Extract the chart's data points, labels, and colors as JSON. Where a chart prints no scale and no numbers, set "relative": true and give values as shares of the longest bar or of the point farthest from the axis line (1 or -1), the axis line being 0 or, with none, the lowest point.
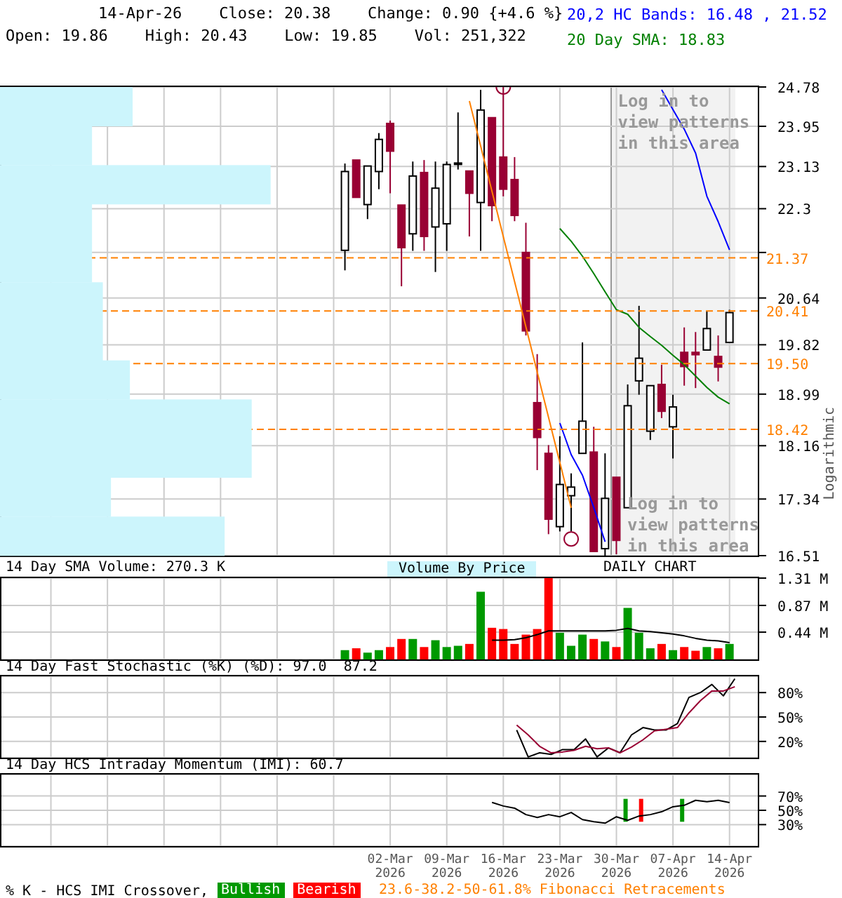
{
  "chart_data": [
    {
      "type": "candlestick",
      "title": "14-Apr-26    Close: 20.38    Change: 0.90 {+4.6 %}",
      "subtitle": "Open: 19.86    High: 20.43    Low: 19.85    Vol: 251,322",
      "ylabel": "Logarithmic",
      "log": true,
      "grid": true,
      "legend": "top right",
      "tick_labels": "y",
      "categories": [
        null,
        null,
        null,
        null,
        null,
        null,
        null,
        null,
        null,
        null,
        null,
        null,
        null,
        null,
        null,
        null,
        null,
        null,
        null,
        null,
        null,
        null,
        null,
        null,
        null,
        null,
        null,
        null,
        null,
        null,
        null,
        null,
        null,
        null,
        "02-Mar 2026",
        null,
        null,
        null,
        null,
        "09-Mar 2026",
        null,
        null,
        null,
        null,
        "16-Mar 2026",
        null,
        null,
        null,
        null,
        "23-Mar 2026",
        null,
        null,
        null,
        null,
        "30-Mar 2026",
        null,
        null,
        null,
        null,
        "07-Apr 2026",
        null,
        null,
        null,
        null,
        "14-Apr 2026",
        null,
        null
      ],
      "ohlc": [
        null,
        null,
        null,
        null,
        null,
        null,
        null,
        null,
        null,
        null,
        null,
        null,
        null,
        null,
        null,
        null,
        null,
        null,
        null,
        null,
        null,
        null,
        null,
        null,
        null,
        null,
        null,
        null,
        null,
        null,
        [
          21.51,
          23.19,
          21.14,
          23.03
        ],
        [
          23.26,
          23.26,
          22.52,
          22.52
        ],
        [
          22.38,
          23.14,
          22.1,
          23.14
        ],
        [
          23.03,
          23.81,
          22.68,
          23.68
        ],
        [
          24.01,
          24.07,
          22.6,
          23.44
        ],
        [
          22.37,
          22.37,
          20.85,
          21.56
        ],
        [
          21.82,
          23.23,
          21.5,
          22.94
        ],
        [
          23.01,
          23.26,
          21.5,
          21.77
        ],
        [
          21.95,
          23.23,
          21.11,
          22.7
        ],
        [
          22.01,
          23.23,
          21.5,
          23.17
        ],
        [
          23.19,
          24.24,
          23.07,
          23.2
        ],
        [
          23.04,
          23.04,
          21.77,
          22.6
        ],
        [
          22.42,
          24.72,
          21.5,
          24.29
        ],
        [
          24.13,
          24.13,
          22.06,
          22.36
        ],
        [
          23.32,
          24.78,
          22.54,
          22.68
        ],
        [
          22.87,
          23.32,
          22.06,
          22.17
        ],
        [
          21.47,
          22.03,
          19.98,
          20.06
        ],
        [
          18.85,
          19.66,
          17.78,
          18.29
        ],
        [
          18.04,
          18.17,
          16.82,
          17.04
        ],
        [
          16.93,
          18.31,
          16.86,
          17.56
        ],
        [
          17.39,
          17.73,
          16.86,
          17.52
        ],
        [
          18.04,
          19.86,
          18.04,
          18.55
        ],
        [
          18.06,
          18.46,
          16.57,
          16.57
        ],
        [
          16.61,
          18.04,
          16.51,
          17.35
        ],
        [
          17.67,
          17.67,
          16.53,
          16.73
        ],
        [
          17.21,
          19.15,
          17.21,
          18.8
        ],
        [
          19.21,
          20.5,
          18.98,
          19.59
        ],
        [
          18.39,
          19.13,
          18.25,
          19.13
        ],
        [
          19.15,
          19.48,
          18.6,
          18.71
        ],
        [
          18.46,
          18.98,
          17.96,
          18.78
        ],
        [
          19.69,
          20.12,
          19.13,
          19.45
        ],
        [
          19.69,
          20.04,
          19.09,
          19.65
        ],
        [
          19.73,
          20.4,
          19.73,
          20.1
        ],
        [
          19.62,
          19.98,
          19.2,
          19.44
        ],
        [
          19.86,
          20.43,
          19.85,
          20.38
        ],
        null,
        null
      ],
      "colors": [
        null,
        null,
        null,
        null,
        null,
        null,
        null,
        null,
        null,
        null,
        null,
        null,
        null,
        null,
        null,
        null,
        null,
        null,
        null,
        null,
        null,
        null,
        null,
        null,
        null,
        null,
        null,
        null,
        null,
        null,
        "#ffffff",
        "#990033",
        "#ffffff",
        "#ffffff",
        "#990033",
        "#990033",
        "#ffffff",
        "#990033",
        "#ffffff",
        "#ffffff",
        "#ffffff",
        "#990033",
        "#ffffff",
        "#990033",
        "#990033",
        "#990033",
        "#990033",
        "#990033",
        "#990033",
        "#ffffff",
        "#ffffff",
        "#ffffff",
        "#990033",
        "#ffffff",
        "#990033",
        "#ffffff",
        "#ffffff",
        "#ffffff",
        "#990033",
        "#ffffff",
        "#990033",
        "#990033",
        "#ffffff",
        "#990033",
        "#ffffff",
        null,
        null
      ],
      "series": [
        {
          "type": "line",
          "name": "20,2 HC Bands: 16.48 , 21.52",
          "color": "#0000ff",
          "values": [
            null,
            null,
            null,
            null,
            null,
            null,
            null,
            null,
            null,
            null,
            null,
            null,
            null,
            null,
            null,
            null,
            null,
            null,
            null,
            null,
            null,
            null,
            null,
            null,
            null,
            null,
            null,
            null,
            null,
            null,
            null,
            null,
            null,
            null,
            null,
            null,
            null,
            null,
            null,
            null,
            null,
            null,
            null,
            null,
            null,
            null,
            null,
            null,
            null,
            null,
            null,
            null,
            null,
            null,
            null,
            null,
            null,
            null,
            24.72,
            24.3,
            23.89,
            23.4,
            22.54,
            22.05,
            21.52,
            null,
            null
          ]
        },
        {
          "type": "line",
          "color": "#0000ff",
          "values": [
            null,
            null,
            null,
            null,
            null,
            null,
            null,
            null,
            null,
            null,
            null,
            null,
            null,
            null,
            null,
            null,
            null,
            null,
            null,
            null,
            null,
            null,
            null,
            null,
            null,
            null,
            null,
            null,
            null,
            null,
            null,
            null,
            null,
            null,
            null,
            null,
            null,
            null,
            null,
            null,
            null,
            null,
            null,
            null,
            null,
            null,
            null,
            null,
            null,
            18.52,
            18.02,
            17.7,
            17.21,
            16.71,
            null,
            null,
            null,
            null,
            null,
            null,
            null,
            null,
            null,
            null,
            null,
            null,
            null
          ]
        },
        {
          "type": "line",
          "name": "20 Day SMA: 18.83",
          "color": "#008000",
          "values": [
            null,
            null,
            null,
            null,
            null,
            null,
            null,
            null,
            null,
            null,
            null,
            null,
            null,
            null,
            null,
            null,
            null,
            null,
            null,
            null,
            null,
            null,
            null,
            null,
            null,
            null,
            null,
            null,
            null,
            null,
            null,
            null,
            null,
            null,
            null,
            null,
            null,
            null,
            null,
            null,
            null,
            null,
            null,
            null,
            null,
            null,
            null,
            null,
            null,
            21.92,
            21.68,
            21.4,
            21.08,
            20.75,
            20.43,
            20.35,
            20.12,
            19.96,
            19.81,
            19.64,
            19.48,
            19.29,
            19.1,
            18.94,
            18.83,
            null,
            null
          ]
        },
        {
          "type": "line",
          "color": "#ff8000",
          "values": [
            null,
            null,
            null,
            null,
            null,
            null,
            null,
            null,
            null,
            null,
            null,
            null,
            null,
            null,
            null,
            null,
            null,
            null,
            null,
            null,
            null,
            null,
            null,
            null,
            null,
            null,
            null,
            null,
            null,
            null,
            null,
            null,
            null,
            null,
            null,
            null,
            null,
            null,
            null,
            null,
            null,
            24.48,
            null,
            null,
            null,
            null,
            null,
            null,
            null,
            null,
            17.21,
            null,
            null,
            null,
            null,
            null,
            null,
            null,
            null,
            null,
            null,
            null,
            null,
            null,
            null,
            null,
            null
          ]
        },
        {
          "type": "scatter",
          "color": "#990033",
          "marker": "circle",
          "values": [
            null,
            null,
            null,
            null,
            null,
            null,
            null,
            null,
            null,
            null,
            null,
            null,
            null,
            null,
            null,
            null,
            null,
            null,
            null,
            null,
            null,
            null,
            null,
            null,
            null,
            null,
            null,
            null,
            null,
            null,
            null,
            null,
            null,
            null,
            null,
            null,
            null,
            null,
            null,
            null,
            null,
            null,
            null,
            null,
            24.78,
            null,
            null,
            null,
            null,
            null,
            16.75,
            null,
            null,
            null,
            null,
            null,
            null,
            null,
            null,
            null,
            null,
            null,
            null,
            null,
            null,
            null,
            null
          ]
        }
      ],
      "ylim": [
        16.51,
        24.78
      ],
      "yticks": [
        16.51,
        17.34,
        18.16,
        18.99,
        19.82,
        20.64,
        {
          "value": 21.47,
          "label": null
        },
        22.3,
        23.13,
        23.95,
        24.78
      ],
      "ref_lines": [
        {
          "axis": "y",
          "value": 21.37,
          "label": "21.37",
          "color": "#ff8000",
          "line_style": "dashed"
        },
        {
          "axis": "y",
          "value": 20.41,
          "label": "20.41",
          "color": "#ff8000",
          "line_style": "dashed"
        },
        {
          "axis": "y",
          "value": 19.5,
          "label": "19.50",
          "color": "#ff8000",
          "line_style": "dashed"
        },
        {
          "axis": "y",
          "value": 18.42,
          "label": "18.42",
          "color": "#ff8000",
          "line_style": "dashed"
        }
      ],
      "bands": [
        {
          "axis": "x",
          "from": "30-Mar 2026",
          "to": "14-Apr 2026",
          "label": "Log in to view patterns in this area",
          "color": "#f2f2f2"
        }
      ],
      "annotations": [
        "Log in to view patterns in this area",
        "DAILY CHART",
        "23.6-38.2-50-61.8% Fibonacci Retracements",
        "Volume By Price"
      ]
    },
    {
      "type": "bar",
      "orientation": "horizontal",
      "relative": true,
      "categories": [
        null,
        null,
        null,
        null,
        null,
        null,
        null,
        null,
        null,
        null,
        null,
        null
      ],
      "values": [
        0.49,
        0.34,
        1,
        0.34,
        0.34,
        0.38,
        0.38,
        0.48,
        0.93,
        0.93,
        0.41,
        0.83
      ],
      "color": "#ccf5fc"
    },
    {
      "type": "bar",
      "title": "14 Day SMA Volume: 270.3 K",
      "grid": true,
      "tick_labels": "y",
      "categories": [
        null,
        null,
        null,
        null,
        null,
        null,
        null,
        null,
        null,
        null,
        null,
        null,
        null,
        null,
        null,
        null,
        null,
        null,
        null,
        null,
        null,
        null,
        null,
        null,
        null,
        null,
        null,
        null,
        null,
        null,
        null,
        null,
        null,
        null,
        "02-Mar 2026",
        null,
        null,
        null,
        null,
        "09-Mar 2026",
        null,
        null,
        null,
        null,
        "16-Mar 2026",
        null,
        null,
        null,
        null,
        "23-Mar 2026",
        null,
        null,
        null,
        null,
        "30-Mar 2026",
        null,
        null,
        null,
        null,
        "07-Apr 2026",
        null,
        null,
        null,
        null,
        "14-Apr 2026",
        null,
        null
      ],
      "series": [
        {
          "values": [
            null,
            null,
            null,
            null,
            null,
            null,
            null,
            null,
            null,
            null,
            null,
            null,
            null,
            null,
            null,
            null,
            null,
            null,
            null,
            null,
            null,
            null,
            null,
            null,
            null,
            null,
            null,
            null,
            null,
            null,
            0.15,
            0.18,
            0.11,
            0.15,
            0.2,
            0.33,
            0.33,
            0.2,
            0.31,
            0.2,
            0.22,
            0.25,
            1.09,
            0.51,
            0.49,
            0.25,
            0.4,
            0.49,
            1.31,
            0.43,
            0.22,
            0.4,
            0.33,
            0.29,
            0.2,
            0.83,
            0.43,
            0.18,
            0.25,
            0.15,
            0.2,
            0.14,
            0.2,
            0.18,
            0.25,
            null,
            null
          ],
          "colors": [
            null,
            null,
            null,
            null,
            null,
            null,
            null,
            null,
            null,
            null,
            null,
            null,
            null,
            null,
            null,
            null,
            null,
            null,
            null,
            null,
            null,
            null,
            null,
            null,
            null,
            null,
            null,
            null,
            null,
            null,
            "#009900",
            "#ff0000",
            "#009900",
            "#009900",
            "#ff0000",
            "#ff0000",
            "#009900",
            "#ff0000",
            "#009900",
            "#009900",
            "#009900",
            "#ff0000",
            "#009900",
            "#ff0000",
            "#ff0000",
            "#ff0000",
            "#ff0000",
            "#ff0000",
            "#ff0000",
            "#009900",
            "#009900",
            "#009900",
            "#ff0000",
            "#009900",
            "#ff0000",
            "#009900",
            "#009900",
            "#009900",
            "#ff0000",
            "#009900",
            "#ff0000",
            "#ff0000",
            "#009900",
            "#ff0000",
            "#009900",
            null,
            null
          ]
        },
        {
          "type": "line",
          "color": "#000000",
          "values": [
            null,
            null,
            null,
            null,
            null,
            null,
            null,
            null,
            null,
            null,
            null,
            null,
            null,
            null,
            null,
            null,
            null,
            null,
            null,
            null,
            null,
            null,
            null,
            null,
            null,
            null,
            null,
            null,
            null,
            null,
            null,
            null,
            null,
            null,
            null,
            null,
            null,
            null,
            null,
            null,
            null,
            null,
            null,
            0.31,
            0.31,
            0.32,
            0.35,
            0.4,
            0.46,
            0.46,
            0.46,
            0.46,
            0.46,
            0.46,
            0.47,
            0.5,
            0.46,
            0.45,
            0.43,
            0.41,
            0.38,
            0.34,
            0.31,
            0.3,
            0.27,
            null,
            null
          ]
        }
      ],
      "ylim": [
        0,
        1.31
      ],
      "yticks": [
        {
          "value": 0.44,
          "label": "0.44 M"
        },
        {
          "value": 0.87,
          "label": "0.87 M"
        },
        {
          "value": 1.31,
          "label": "1.31 M"
        }
      ]
    },
    {
      "type": "line",
      "title": "14 Day Fast Stochastic (%K) (%D): 97.0  87.2",
      "grid": true,
      "tick_labels": "y",
      "categories": [
        null,
        null,
        null,
        null,
        null,
        null,
        null,
        null,
        null,
        null,
        null,
        null,
        null,
        null,
        null,
        null,
        null,
        null,
        null,
        null,
        null,
        null,
        null,
        null,
        null,
        null,
        null,
        null,
        null,
        null,
        null,
        null,
        null,
        null,
        "02-Mar 2026",
        null,
        null,
        null,
        null,
        "09-Mar 2026",
        null,
        null,
        null,
        null,
        "16-Mar 2026",
        null,
        null,
        null,
        null,
        "23-Mar 2026",
        null,
        null,
        null,
        null,
        "30-Mar 2026",
        null,
        null,
        null,
        null,
        "07-Apr 2026",
        null,
        null,
        null,
        null,
        "14-Apr 2026",
        null,
        null
      ],
      "series": [
        {
          "color": "#000000",
          "values": [
            null,
            null,
            null,
            null,
            null,
            null,
            null,
            null,
            null,
            null,
            null,
            null,
            null,
            null,
            null,
            null,
            null,
            null,
            null,
            null,
            null,
            null,
            null,
            null,
            null,
            null,
            null,
            null,
            null,
            null,
            null,
            null,
            null,
            null,
            null,
            null,
            null,
            null,
            null,
            null,
            null,
            null,
            null,
            null,
            null,
            34,
            1,
            6,
            4,
            10,
            10,
            23,
            1,
            12,
            6,
            28,
            37,
            34,
            34,
            42,
            74,
            80,
            90,
            76,
            97.0,
            null,
            null
          ]
        },
        {
          "color": "#990033",
          "values": [
            null,
            null,
            null,
            null,
            null,
            null,
            null,
            null,
            null,
            null,
            null,
            null,
            null,
            null,
            null,
            null,
            null,
            null,
            null,
            null,
            null,
            null,
            null,
            null,
            null,
            null,
            null,
            null,
            null,
            null,
            null,
            null,
            null,
            null,
            null,
            null,
            null,
            null,
            null,
            null,
            null,
            null,
            null,
            null,
            null,
            40,
            28,
            14,
            6,
            7,
            9,
            14,
            11,
            12,
            6,
            13,
            22,
            33,
            35,
            37,
            55,
            70,
            82,
            82,
            87.2,
            null,
            null
          ]
        }
      ],
      "ylim": [
        0,
        100
      ],
      "yticks": [
        {
          "value": 20,
          "label": "20%"
        },
        {
          "value": 50,
          "label": "50%"
        },
        {
          "value": 80,
          "label": "80%"
        }
      ]
    },
    {
      "type": "line",
      "title": "14 Day HCS Intraday Momentum (IMI): 60.7",
      "grid": true,
      "legend": "bottom",
      "legend_title": "% K - HCS IMI Crossover,",
      "categories": [
        null,
        null,
        null,
        null,
        null,
        null,
        null,
        null,
        null,
        null,
        null,
        null,
        null,
        null,
        null,
        null,
        null,
        null,
        null,
        null,
        null,
        null,
        null,
        null,
        null,
        null,
        null,
        null,
        null,
        null,
        null,
        null,
        null,
        null,
        "02-Mar 2026",
        null,
        null,
        null,
        null,
        "09-Mar 2026",
        null,
        null,
        null,
        null,
        "16-Mar 2026",
        null,
        null,
        null,
        null,
        "23-Mar 2026",
        null,
        null,
        null,
        null,
        "30-Mar 2026",
        null,
        null,
        null,
        null,
        "07-Apr 2026",
        null,
        null,
        null,
        null,
        "14-Apr 2026",
        null,
        null
      ],
      "series": [
        {
          "type": "bar",
          "name": "Bullish",
          "color": "#009900",
          "values": [
            null,
            null,
            null,
            null,
            null,
            null,
            null,
            null,
            null,
            null,
            null,
            null,
            null,
            null,
            null,
            null,
            null,
            null,
            null,
            null,
            null,
            null,
            null,
            null,
            null,
            null,
            null,
            null,
            null,
            null,
            null,
            null,
            null,
            null,
            null,
            null,
            null,
            null,
            null,
            null,
            null,
            null,
            null,
            null,
            null,
            null,
            null,
            null,
            null,
            null,
            null,
            null,
            null,
            null,
            null,
            32,
            null,
            null,
            null,
            null,
            32,
            null,
            null,
            null,
            null,
            null,
            null
          ],
          "base": [
            null,
            null,
            null,
            null,
            null,
            null,
            null,
            null,
            null,
            null,
            null,
            null,
            null,
            null,
            null,
            null,
            null,
            null,
            null,
            null,
            null,
            null,
            null,
            null,
            null,
            null,
            null,
            null,
            null,
            null,
            null,
            null,
            null,
            null,
            null,
            null,
            null,
            null,
            null,
            null,
            null,
            null,
            null,
            null,
            null,
            null,
            null,
            null,
            null,
            null,
            null,
            null,
            null,
            null,
            null,
            34,
            null,
            null,
            null,
            null,
            34,
            null,
            null,
            null,
            null,
            null,
            null
          ]
        },
        {
          "type": "bar",
          "name": "Bearish",
          "color": "#ff0000",
          "values": [
            null,
            null,
            null,
            null,
            null,
            null,
            null,
            null,
            null,
            null,
            null,
            null,
            null,
            null,
            null,
            null,
            null,
            null,
            null,
            null,
            null,
            null,
            null,
            null,
            null,
            null,
            null,
            null,
            null,
            null,
            null,
            null,
            null,
            null,
            null,
            null,
            null,
            null,
            null,
            null,
            null,
            null,
            null,
            null,
            null,
            null,
            null,
            null,
            null,
            null,
            null,
            null,
            null,
            null,
            null,
            null,
            32,
            null,
            null,
            null,
            null,
            null,
            null,
            null,
            null,
            null,
            null
          ],
          "base": [
            null,
            null,
            null,
            null,
            null,
            null,
            null,
            null,
            null,
            null,
            null,
            null,
            null,
            null,
            null,
            null,
            null,
            null,
            null,
            null,
            null,
            null,
            null,
            null,
            null,
            null,
            null,
            null,
            null,
            null,
            null,
            null,
            null,
            null,
            null,
            null,
            null,
            null,
            null,
            null,
            null,
            null,
            null,
            null,
            null,
            null,
            null,
            null,
            null,
            null,
            null,
            null,
            null,
            null,
            null,
            null,
            34,
            null,
            null,
            null,
            null,
            null,
            null,
            null,
            null,
            null,
            null
          ]
        },
        {
          "type": "line",
          "color": "#000000",
          "values": [
            null,
            null,
            null,
            null,
            null,
            null,
            null,
            null,
            null,
            null,
            null,
            null,
            null,
            null,
            null,
            null,
            null,
            null,
            null,
            null,
            null,
            null,
            null,
            null,
            null,
            null,
            null,
            null,
            null,
            null,
            null,
            null,
            null,
            null,
            null,
            null,
            null,
            null,
            null,
            null,
            null,
            null,
            null,
            61,
            56,
            53,
            44,
            40,
            44,
            41,
            47,
            37,
            34,
            32,
            41,
            36,
            42,
            44,
            48,
            55,
            57,
            64,
            62,
            64,
            60.7,
            null,
            null
          ]
        }
      ],
      "ylim": [
        0,
        100
      ],
      "yticks": [
        {
          "value": 30,
          "label": "30%"
        },
        {
          "value": 50,
          "label": "50%"
        },
        {
          "value": 70,
          "label": "70%"
        }
      ]
    }
  ]
}
